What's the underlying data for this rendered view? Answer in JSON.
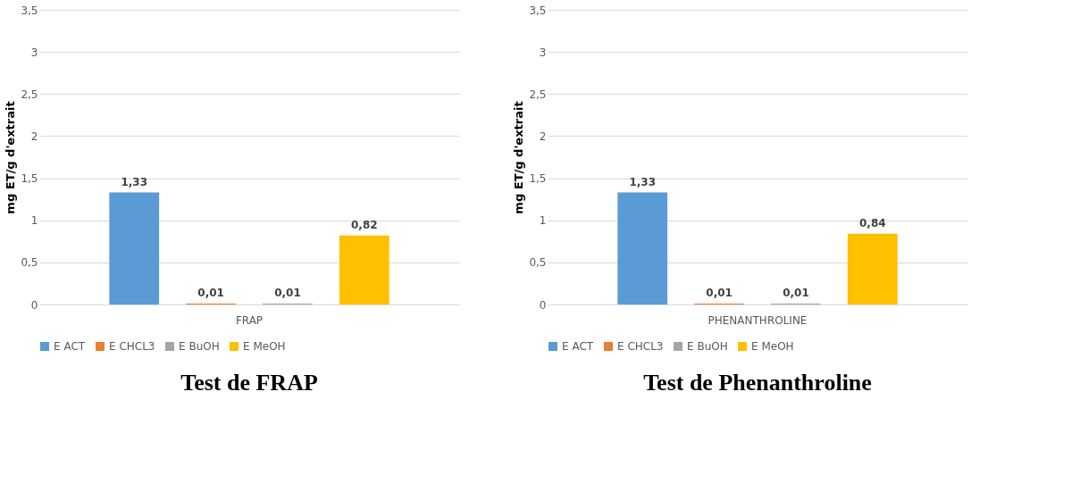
{
  "chart_data": [
    {
      "type": "bar",
      "title": "Test de FRAP",
      "ylabel": "mg ET/g d'extrait",
      "categories": [
        "FRAP"
      ],
      "series": [
        {
          "name": "E ACT",
          "color": "#5b9bd5",
          "values": [
            1.33
          ],
          "value_labels": [
            "1,33"
          ]
        },
        {
          "name": "E CHCL3",
          "color": "#ed7d31",
          "values": [
            0.01
          ],
          "value_labels": [
            "0,01"
          ]
        },
        {
          "name": "E BuOH",
          "color": "#a5a5a5",
          "values": [
            0.01
          ],
          "value_labels": [
            "0,01"
          ]
        },
        {
          "name": "E MeOH",
          "color": "#ffc000",
          "values": [
            0.82
          ],
          "value_labels": [
            "0,82"
          ]
        }
      ],
      "ylim": [
        0,
        3.5
      ],
      "yticks": [
        0,
        {
          "value": 0.5,
          "label": "0,5"
        },
        1,
        {
          "value": 1.5,
          "label": "1,5"
        },
        2,
        {
          "value": 2.5,
          "label": "2,5"
        },
        3,
        {
          "value": 3.5,
          "label": "3,5"
        }
      ],
      "grid": "y",
      "legend": "bottom"
    },
    {
      "type": "bar",
      "title": "Test de Phenanthroline",
      "ylabel": "mg ET/g d'extrait",
      "categories": [
        "PHENANTHROLINE"
      ],
      "series": [
        {
          "name": "E ACT",
          "color": "#5b9bd5",
          "values": [
            1.33
          ],
          "value_labels": [
            "1,33"
          ]
        },
        {
          "name": "E CHCL3",
          "color": "#ed7d31",
          "values": [
            0.01
          ],
          "value_labels": [
            "0,01"
          ]
        },
        {
          "name": "E BuOH",
          "color": "#a5a5a5",
          "values": [
            0.01
          ],
          "value_labels": [
            "0,01"
          ]
        },
        {
          "name": "E MeOH",
          "color": "#ffc000",
          "values": [
            0.84
          ],
          "value_labels": [
            "0,84"
          ]
        }
      ],
      "ylim": [
        0,
        3.5
      ],
      "yticks": [
        0,
        {
          "value": 0.5,
          "label": "0,5"
        },
        1,
        {
          "value": 1.5,
          "label": "1,5"
        },
        2,
        {
          "value": 2.5,
          "label": "2,5"
        },
        3,
        {
          "value": 3.5,
          "label": "3,5"
        }
      ],
      "grid": "y",
      "legend": "bottom"
    }
  ]
}
